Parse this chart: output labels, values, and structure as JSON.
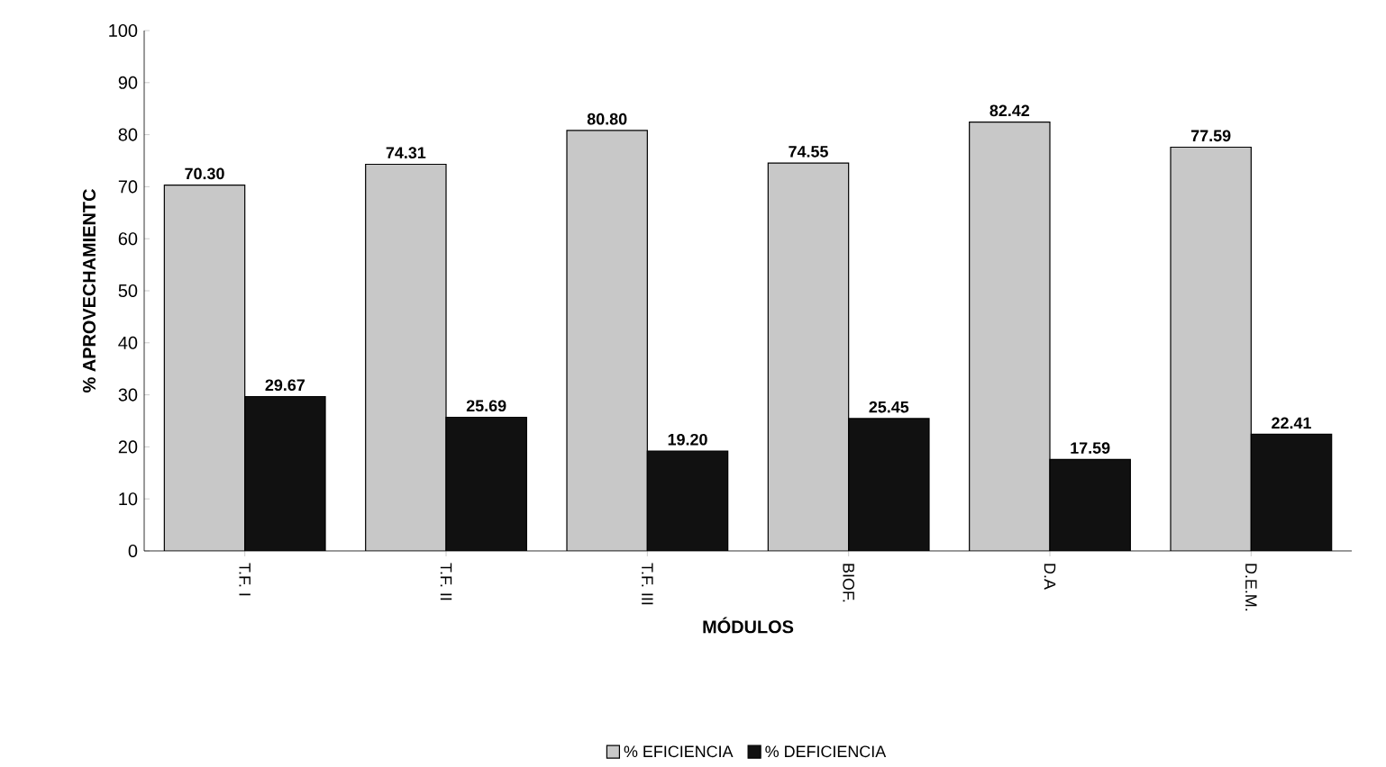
{
  "chart_data": {
    "type": "bar",
    "xlabel": "MÓDULOS",
    "ylabel": "% APROVECHAMIENTC",
    "categories": [
      "T.F. I",
      "T.F. II",
      "T.F. III",
      "BIOF.",
      "D.A",
      "D.E.M."
    ],
    "series": [
      {
        "name": "% EFICIENCIA",
        "color": "#c8c8c8",
        "values": [
          70.3,
          74.31,
          80.8,
          74.55,
          82.42,
          77.59
        ],
        "value_labels": [
          "70.30",
          "74.31",
          "80.80",
          "74.55",
          "82.42",
          "77.59"
        ]
      },
      {
        "name": "% DEFICIENCIA",
        "color": "#111111",
        "values": [
          29.67,
          25.69,
          19.2,
          25.45,
          17.59,
          22.41
        ],
        "value_labels": [
          "29.67",
          "25.69",
          "19.20",
          "25.45",
          "17.59",
          "22.41"
        ]
      }
    ],
    "ylim": [
      0,
      100
    ],
    "yticks": [
      0,
      10,
      20,
      30,
      40,
      50,
      60,
      70,
      80,
      90,
      100
    ],
    "grid": false,
    "legend": "bottom"
  }
}
